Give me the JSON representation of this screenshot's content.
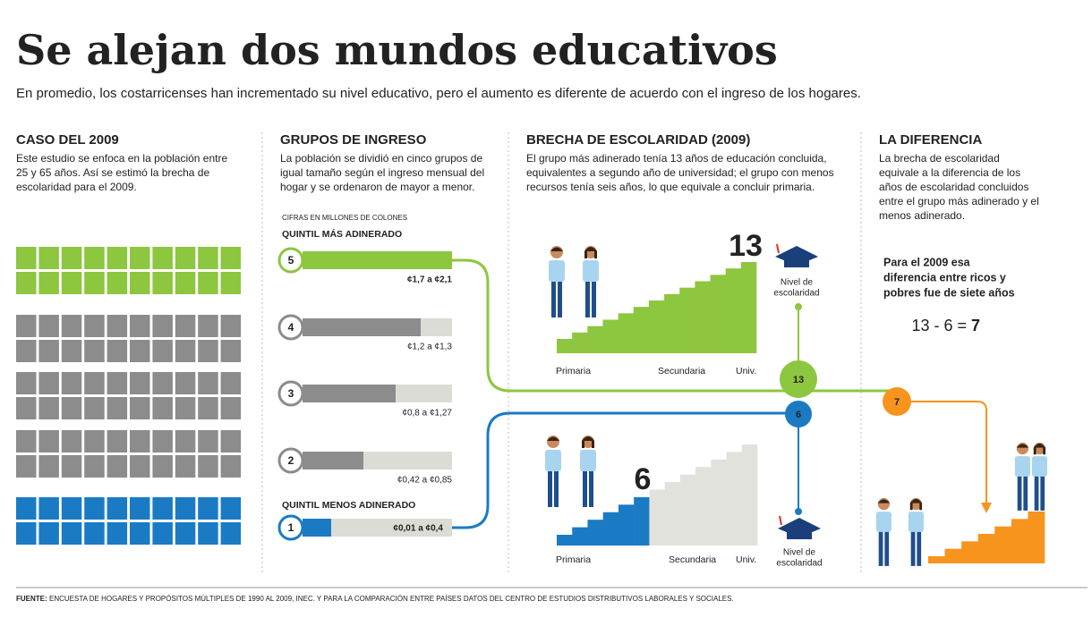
{
  "header": {
    "title": "Se alejan dos mundos educativos",
    "subtitle": "En promedio, los costarricenses han incrementado su nivel educativo, pero el aumento es diferente de acuerdo con el ingreso de los hogares."
  },
  "sections": [
    {
      "heading": "CASO DEL 2009",
      "text": [
        "Este estudio se enfoca en la población entre",
        "25 y 65 años. Así se estimó la brecha de",
        "escolaridad para el 2009."
      ]
    },
    {
      "heading": "GRUPOS DE INGRESO",
      "text": [
        "La población se dividió en cinco grupos de",
        "igual tamaño según el ingreso mensual del",
        "hogar y se ordenaron de mayor a menor."
      ]
    },
    {
      "heading": "BRECHA DE ESCOLARIDAD (2009)",
      "text": [
        "El grupo más adinerado tenía 13 años de educación concluida,",
        "equivalentes a segundo año de universidad; el grupo con menos",
        "recursos tenía  seis años, lo que equivale a concluir primaria."
      ]
    },
    {
      "heading": "LA DIFERENCIA",
      "text": [
        "La brecha de escolaridad",
        "equivale a la diferencia de los",
        "años de escolaridad concluidos",
        "entre el grupo más adinerado y el",
        "menos adinerado."
      ]
    }
  ],
  "income": {
    "note": "CIFRAS EN MILLONES DE COLONES",
    "top_label": "QUINTIL MÁS ADINERADO",
    "bottom_label": "QUINTIL MENOS ADINERADO",
    "quintiles": [
      {
        "number": 5,
        "range": "¢1,7 a ¢2,1"
      },
      {
        "number": 4,
        "range": "¢1,2 a ¢1,3"
      },
      {
        "number": 3,
        "range": "¢0,8 a ¢1,27"
      },
      {
        "number": 2,
        "range": "¢0,42 a ¢0,85"
      },
      {
        "number": 1,
        "range": "¢0,01 a ¢0,4"
      }
    ]
  },
  "gap": {
    "high": 13,
    "low": 6,
    "levels": [
      "Primaria",
      "Secundaria",
      "Univ."
    ],
    "level_caption": [
      "Nivel de",
      "escolaridad"
    ]
  },
  "difference": {
    "text": [
      "Para el 2009 esa",
      "diferencia entre ricos y",
      "pobres fue de siete años"
    ],
    "equation": "13 - 6 =",
    "result": 7
  },
  "footer": {
    "source_label": "FUENTE:",
    "source": "ENCUESTA DE HOGARES Y PROPÓSITOS MÚLTIPLES DE 1990 AL 2009, INEC. Y PARA LA COMPARACIÓN ENTRE PAÍSES DATOS DEL CENTRO DE ESTUDIOS DISTRIBUTIVOS LABORALES Y SOCIALES."
  }
}
